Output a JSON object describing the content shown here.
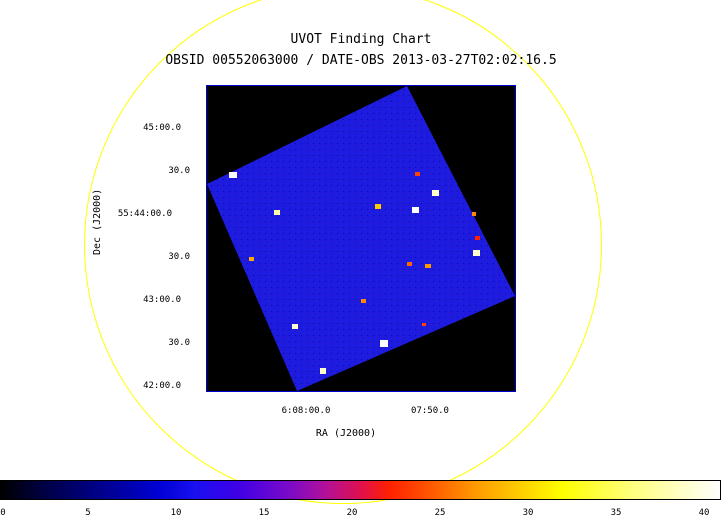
{
  "header": {
    "title": "UVOT Finding Chart",
    "subtitle": "OBSID 00552063000 / DATE-OBS 2013-03-27T02:02:16.5"
  },
  "axes": {
    "dec_label": "Dec (J2000)",
    "ra_label": "RA (J2000)",
    "dec_ticks": [
      "45:00.0",
      "30.0",
      "55:44:00.0",
      "30.0",
      "43:00.0",
      "30.0",
      "42:00.0"
    ],
    "ra_ticks": [
      "6:08:00.0",
      "07:50.0"
    ]
  },
  "colorbar": {
    "ticks": [
      "0",
      "5",
      "10",
      "15",
      "20",
      "25",
      "30",
      "35",
      "40"
    ]
  },
  "colors": {
    "fov_circle": "#ffff00",
    "image_field": "#1a1ad8",
    "background": "#000000"
  }
}
